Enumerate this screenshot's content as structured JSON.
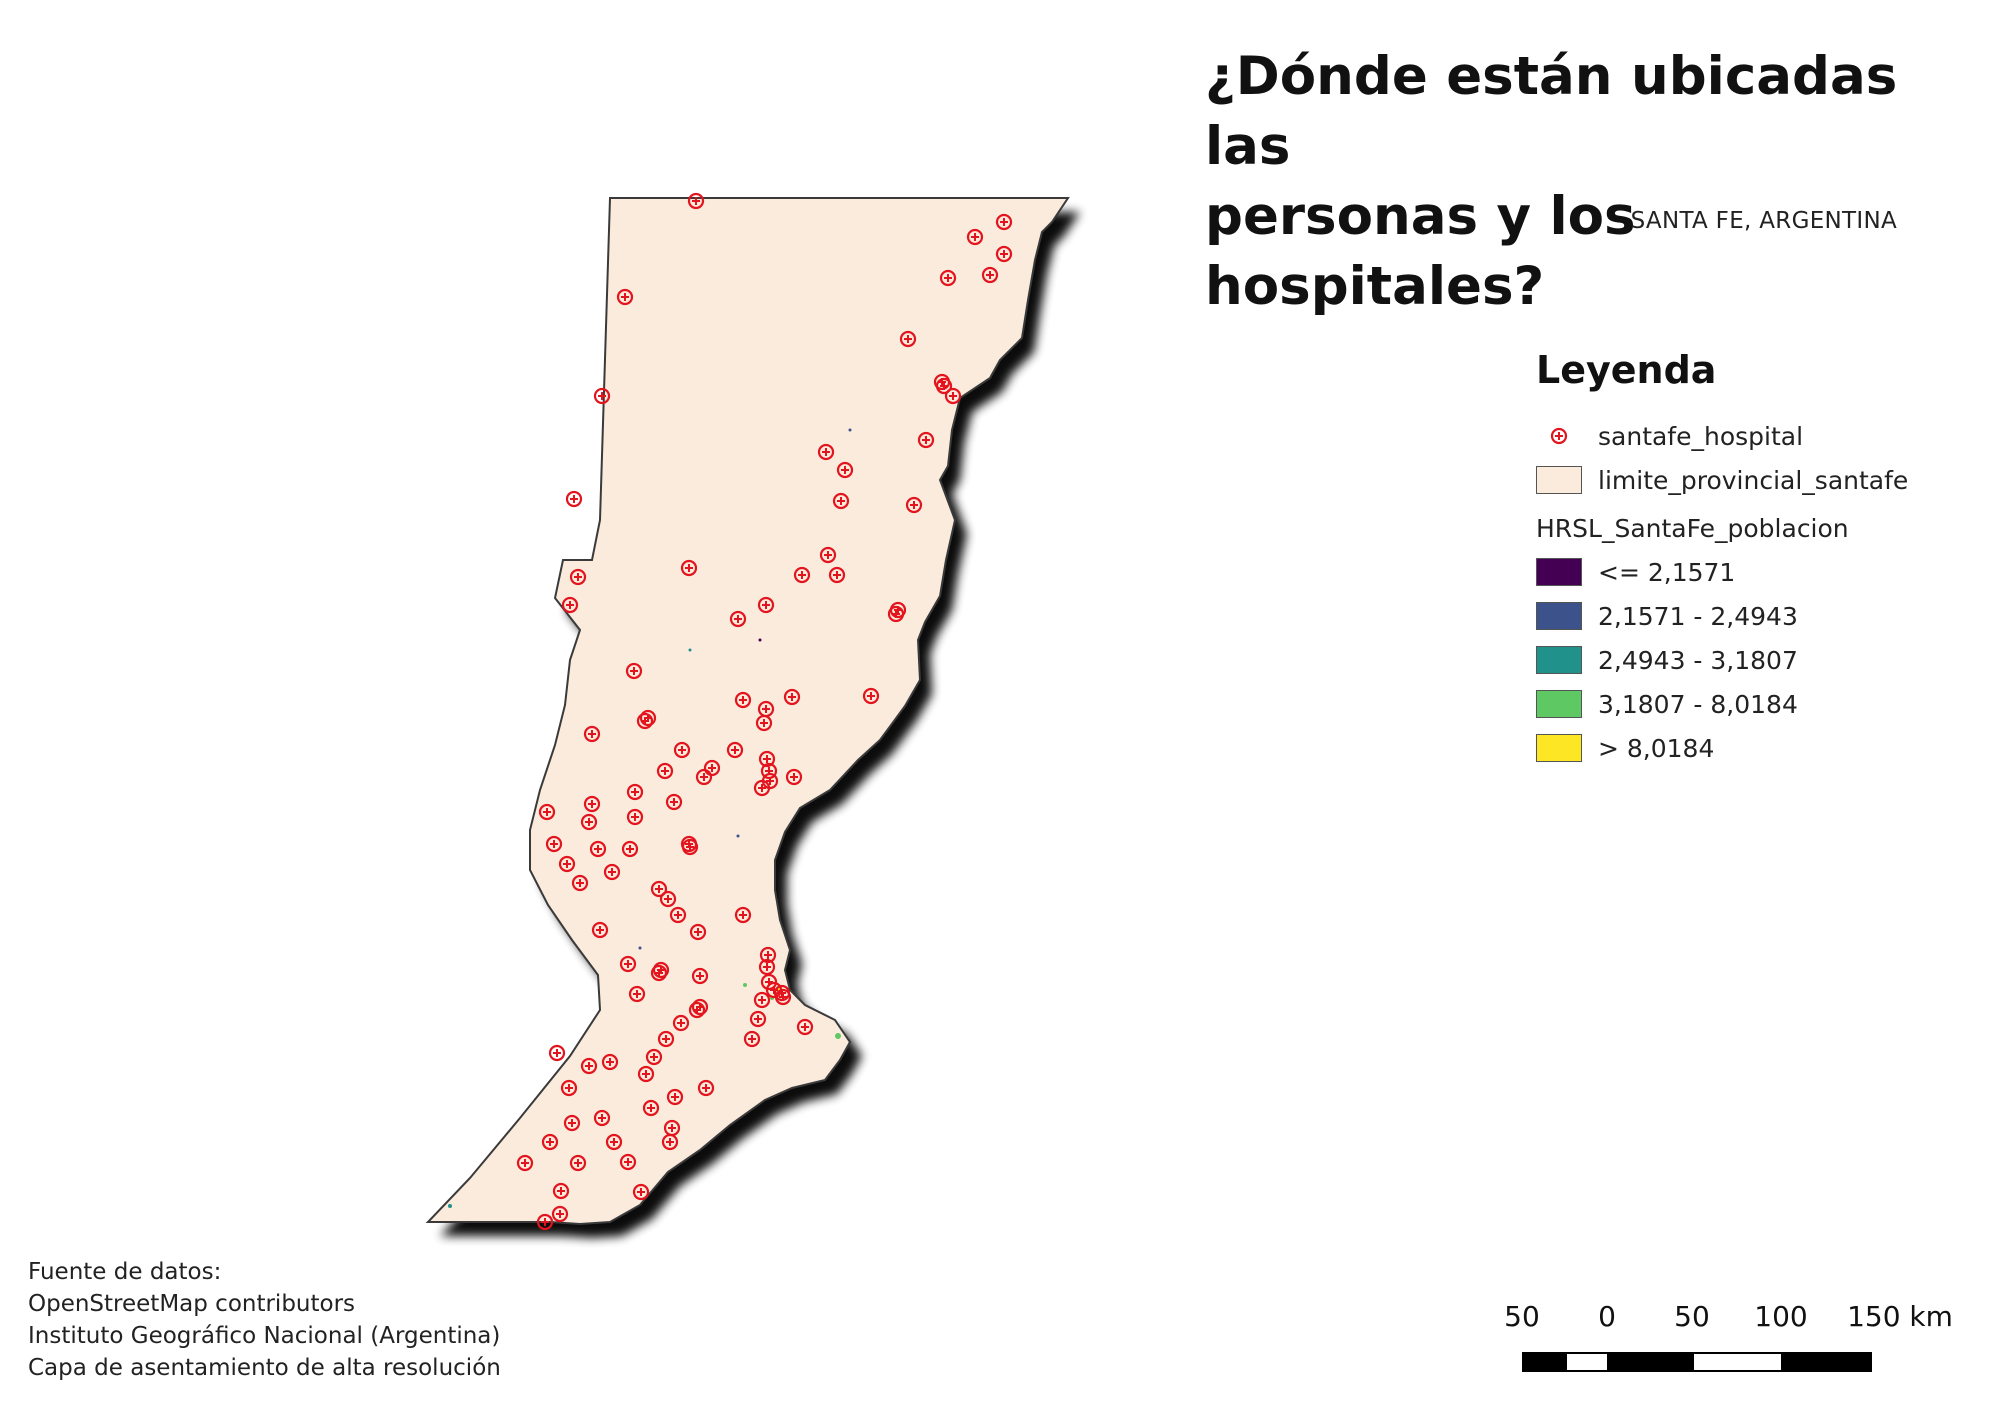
{
  "map": {
    "title_line1": "¿Dónde están ubicadas las",
    "title_line2": "personas y los hospitales?",
    "subtitle": "SANTA FE, ARGENTINA",
    "province_fill": "#faebdc",
    "province_stroke": "#3a3a3a",
    "hospital_color": "#e3141e"
  },
  "legend": {
    "title": "Leyenda",
    "hospital_layer": "santafe_hospital",
    "province_layer": "limite_provincial_santafe",
    "population_layer": "HRSL_SantaFe_poblacion",
    "classes": [
      {
        "label": "<= 2,1571",
        "color": "#440154"
      },
      {
        "label": "2,1571 - 2,4943",
        "color": "#3b528b"
      },
      {
        "label": "2,4943 - 3,1807",
        "color": "#21918c"
      },
      {
        "label": "3,1807 - 8,0184",
        "color": "#5ec962"
      },
      {
        "label": "> 8,0184",
        "color": "#fde725"
      }
    ]
  },
  "source": {
    "line1": "Fuente de datos:",
    "line2": "OpenStreetMap contributors",
    "line3": "Instituto Geográfico Nacional (Argentina)",
    "line4": "Capa de asentamiento de alta resolución"
  },
  "scale": {
    "labels": [
      "50",
      "0",
      "50",
      "100",
      "150 km"
    ]
  }
}
